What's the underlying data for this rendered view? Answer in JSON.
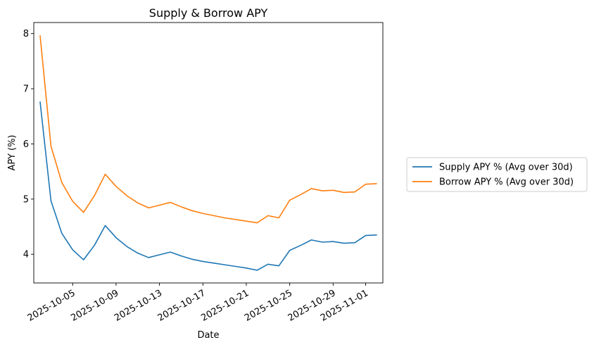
{
  "chart_data": {
    "type": "line",
    "title": "Supply & Borrow APY",
    "xlabel": "Date",
    "ylabel": "APY (%)",
    "x": [
      "2025-10-02",
      "2025-10-03",
      "2025-10-04",
      "2025-10-05",
      "2025-10-06",
      "2025-10-07",
      "2025-10-08",
      "2025-10-09",
      "2025-10-10",
      "2025-10-11",
      "2025-10-12",
      "2025-10-13",
      "2025-10-14",
      "2025-10-15",
      "2025-10-16",
      "2025-10-17",
      "2025-10-18",
      "2025-10-19",
      "2025-10-20",
      "2025-10-21",
      "2025-10-22",
      "2025-10-23",
      "2025-10-24",
      "2025-10-25",
      "2025-10-26",
      "2025-10-27",
      "2025-10-28",
      "2025-10-29",
      "2025-10-30",
      "2025-10-31",
      "2025-11-01",
      "2025-11-02"
    ],
    "series": [
      {
        "name": "Supply APY % (Avg over 30d)",
        "color": "#1f77b4",
        "values": [
          6.76,
          4.97,
          4.38,
          4.08,
          3.9,
          4.16,
          4.52,
          4.3,
          4.14,
          4.02,
          3.94,
          3.99,
          4.04,
          3.97,
          3.91,
          3.87,
          3.84,
          3.81,
          3.78,
          3.75,
          3.71,
          3.82,
          3.79,
          4.07,
          4.16,
          4.26,
          4.22,
          4.23,
          4.2,
          4.21,
          4.34,
          4.35
        ]
      },
      {
        "name": "Borrow APY % (Avg over 30d)",
        "color": "#ff7f0e",
        "values": [
          7.96,
          5.96,
          5.3,
          4.96,
          4.76,
          5.06,
          5.45,
          5.23,
          5.06,
          4.93,
          4.84,
          4.89,
          4.94,
          4.86,
          4.79,
          4.74,
          4.7,
          4.66,
          4.63,
          4.6,
          4.57,
          4.7,
          4.66,
          4.98,
          5.08,
          5.19,
          5.15,
          5.16,
          5.12,
          5.13,
          5.27,
          5.28
        ]
      }
    ],
    "xticks": [
      "2025-10-05",
      "2025-10-09",
      "2025-10-13",
      "2025-10-17",
      "2025-10-21",
      "2025-10-25",
      "2025-10-29",
      "2025-11-01"
    ],
    "yticks": [
      4,
      5,
      6,
      7,
      8
    ],
    "ylim": [
      3.48,
      8.2
    ],
    "xlim": [
      "2025-10-01T10:00",
      "2025-11-02T14:00"
    ],
    "grid": false,
    "legend_position": "outside-right"
  }
}
